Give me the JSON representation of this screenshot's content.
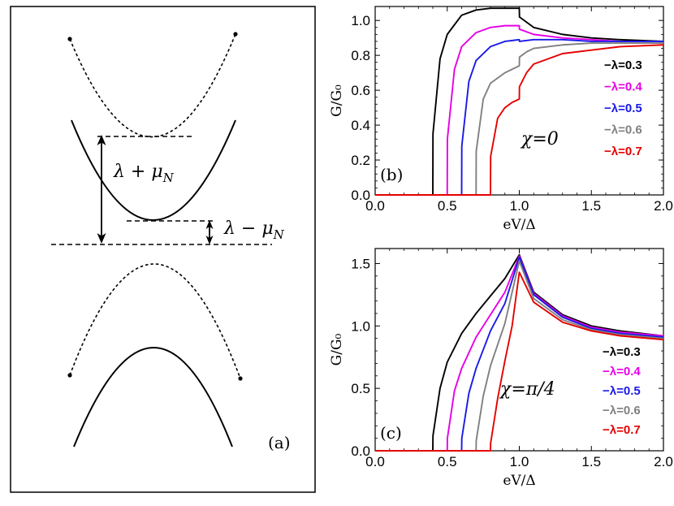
{
  "panel_a": {
    "label": "(a)",
    "gap_upper": "λ + μ",
    "gap_upper_sub": "N",
    "gap_lower": "λ − μ",
    "gap_lower_sub": "N"
  },
  "chart_data": [
    {
      "type": "line",
      "panel_label": "(b)",
      "annotation": "χ=0",
      "xlabel": "eV/Δ",
      "ylabel": "G/G₀",
      "xlim": [
        0,
        2.0
      ],
      "ylim": [
        0,
        1.08
      ],
      "xticks": [
        "0.0",
        "0.5",
        "1.0",
        "1.5",
        "2.0"
      ],
      "yticks": [
        "0.0",
        "0.2",
        "0.4",
        "0.6",
        "0.8",
        "1.0"
      ],
      "legend_position": "right",
      "series": [
        {
          "name": "λ=0.3",
          "color": "#000000",
          "x": [
            0,
            0.4,
            0.401,
            0.45,
            0.5,
            0.6,
            0.7,
            0.8,
            0.9,
            1.0,
            1.001,
            1.1,
            1.3,
            1.5,
            1.7,
            2.0
          ],
          "y": [
            0,
            0,
            0.35,
            0.78,
            0.92,
            1.03,
            1.06,
            1.07,
            1.07,
            1.07,
            1.02,
            0.96,
            0.92,
            0.9,
            0.89,
            0.88
          ]
        },
        {
          "name": "λ=0.4",
          "color": "#e600e6",
          "x": [
            0,
            0.5,
            0.501,
            0.55,
            0.6,
            0.7,
            0.8,
            0.9,
            1.0,
            1.001,
            1.1,
            1.3,
            1.5,
            1.7,
            2.0
          ],
          "y": [
            0,
            0,
            0.32,
            0.72,
            0.85,
            0.93,
            0.96,
            0.97,
            0.97,
            0.95,
            0.92,
            0.9,
            0.89,
            0.88,
            0.88
          ]
        },
        {
          "name": "λ=0.5",
          "color": "#1a1ae6",
          "x": [
            0,
            0.6,
            0.601,
            0.65,
            0.7,
            0.8,
            0.9,
            1.0,
            1.001,
            1.1,
            1.3,
            1.5,
            1.7,
            2.0
          ],
          "y": [
            0,
            0,
            0.28,
            0.65,
            0.77,
            0.85,
            0.88,
            0.89,
            0.88,
            0.89,
            0.89,
            0.88,
            0.88,
            0.88
          ]
        },
        {
          "name": "λ=0.6",
          "color": "#808080",
          "x": [
            0,
            0.7,
            0.701,
            0.75,
            0.8,
            0.9,
            1.0,
            1.001,
            1.05,
            1.1,
            1.3,
            1.5,
            1.7,
            2.0
          ],
          "y": [
            0,
            0,
            0.25,
            0.55,
            0.64,
            0.7,
            0.74,
            0.79,
            0.82,
            0.84,
            0.86,
            0.87,
            0.87,
            0.87
          ]
        },
        {
          "name": "λ=0.7",
          "color": "#e60000",
          "x": [
            0,
            0.8,
            0.801,
            0.85,
            0.9,
            0.95,
            1.0,
            1.001,
            1.05,
            1.1,
            1.3,
            1.5,
            1.7,
            2.0
          ],
          "y": [
            0,
            0,
            0.22,
            0.44,
            0.5,
            0.53,
            0.55,
            0.62,
            0.7,
            0.75,
            0.81,
            0.83,
            0.85,
            0.86
          ]
        }
      ]
    },
    {
      "type": "line",
      "panel_label": "(c)",
      "annotation": "χ=π/4",
      "xlabel": "eV/Δ",
      "ylabel": "G/G₀",
      "xlim": [
        0,
        2.0
      ],
      "ylim": [
        0,
        1.62
      ],
      "xticks": [
        "0.0",
        "0.5",
        "1.0",
        "1.5",
        "2.0"
      ],
      "yticks": [
        "0.0",
        "0.5",
        "1.0",
        "1.5"
      ],
      "legend_position": "bottom-right",
      "series": [
        {
          "name": "λ=0.3",
          "color": "#000000",
          "x": [
            0,
            0.4,
            0.401,
            0.45,
            0.5,
            0.6,
            0.7,
            0.8,
            0.9,
            1.0,
            1.1,
            1.3,
            1.5,
            1.7,
            2.0
          ],
          "y": [
            0,
            0,
            0.12,
            0.5,
            0.71,
            0.94,
            1.1,
            1.24,
            1.38,
            1.57,
            1.27,
            1.09,
            1.0,
            0.96,
            0.92
          ]
        },
        {
          "name": "λ=0.4",
          "color": "#e600e6",
          "x": [
            0,
            0.5,
            0.501,
            0.55,
            0.6,
            0.7,
            0.8,
            0.9,
            1.0,
            1.1,
            1.3,
            1.5,
            1.7,
            2.0
          ],
          "y": [
            0,
            0,
            0.1,
            0.48,
            0.66,
            0.91,
            1.09,
            1.27,
            1.56,
            1.26,
            1.08,
            0.99,
            0.95,
            0.92
          ]
        },
        {
          "name": "λ=0.5",
          "color": "#1a1ae6",
          "x": [
            0,
            0.6,
            0.601,
            0.65,
            0.7,
            0.8,
            0.9,
            1.0,
            1.1,
            1.3,
            1.5,
            1.7,
            2.0
          ],
          "y": [
            0,
            0,
            0.1,
            0.46,
            0.66,
            0.96,
            1.18,
            1.55,
            1.25,
            1.07,
            0.98,
            0.94,
            0.91
          ]
        },
        {
          "name": "λ=0.6",
          "color": "#808080",
          "x": [
            0,
            0.7,
            0.701,
            0.75,
            0.8,
            0.9,
            1.0,
            1.1,
            1.3,
            1.5,
            1.7,
            2.0
          ],
          "y": [
            0,
            0,
            0.08,
            0.44,
            0.68,
            1.02,
            1.52,
            1.22,
            1.05,
            0.97,
            0.93,
            0.9
          ]
        },
        {
          "name": "λ=0.7",
          "color": "#e60000",
          "x": [
            0,
            0.8,
            0.801,
            0.85,
            0.9,
            0.95,
            1.0,
            1.1,
            1.3,
            1.5,
            1.7,
            2.0
          ],
          "y": [
            0,
            0,
            0.06,
            0.42,
            0.72,
            1.0,
            1.43,
            1.19,
            1.03,
            0.96,
            0.92,
            0.89
          ]
        }
      ]
    }
  ]
}
